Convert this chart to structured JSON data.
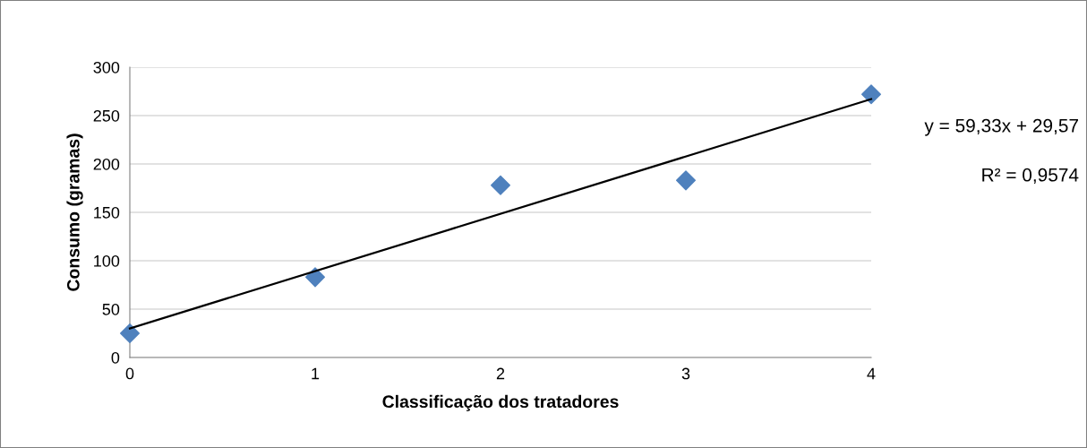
{
  "chart_data": {
    "type": "scatter",
    "xlabel": "Classificação dos tratadores",
    "ylabel": "Consumo (gramas)",
    "x": [
      0,
      1,
      2,
      3,
      4
    ],
    "series": [
      {
        "color": "#4f81bd",
        "marker": "diamond",
        "values": [
          25,
          83,
          178,
          183,
          272
        ]
      },
      {
        "type": "line",
        "color": "#000000",
        "marker": "none",
        "line_style": "solid",
        "x": [
          0,
          4
        ],
        "values": [
          30,
          267
        ]
      }
    ],
    "annotations": [
      "y = 59,33x + 29,57",
      "R² = 0,9574"
    ],
    "xlim": [
      0,
      4
    ],
    "xticks": [
      0,
      1,
      2,
      3,
      4
    ],
    "ylim": [
      0,
      300
    ],
    "yticks": [
      0,
      50,
      100,
      150,
      200,
      250,
      300
    ],
    "grid": "y",
    "legend": false
  }
}
